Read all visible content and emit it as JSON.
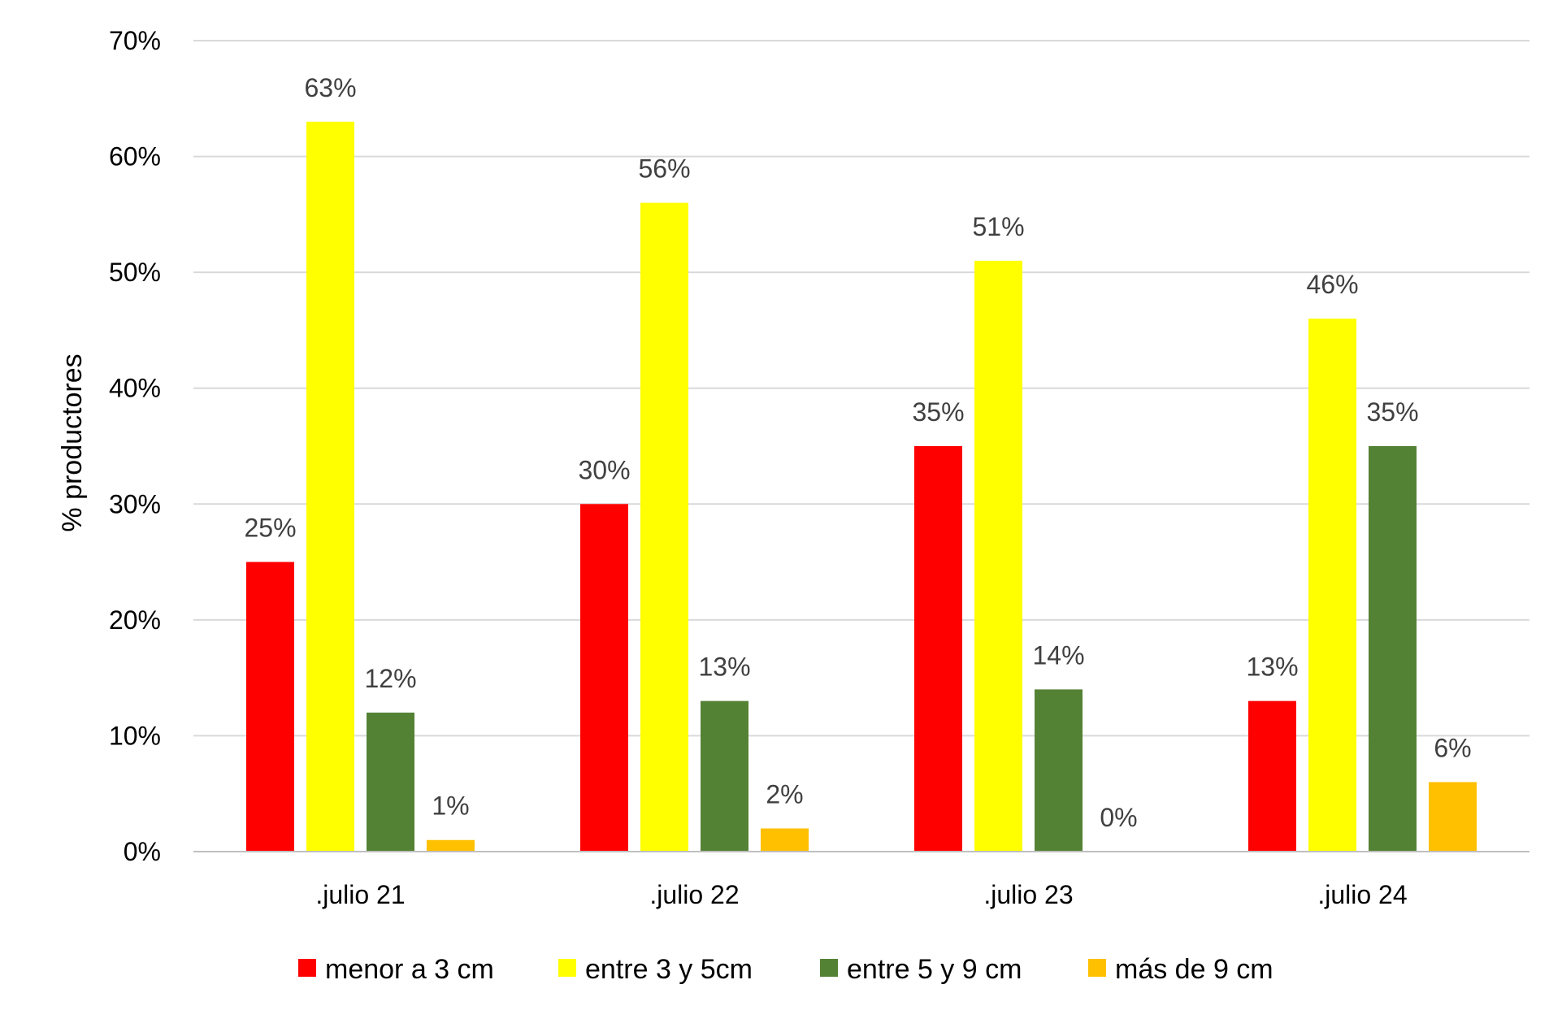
{
  "chart_data": {
    "type": "bar",
    "categories": [
      ".julio 21",
      ".julio 22",
      ".julio 23",
      ".julio 24"
    ],
    "series": [
      {
        "name": "menor a 3 cm",
        "color": "#ff0000",
        "values": [
          25,
          30,
          35,
          13
        ],
        "labels": [
          "25%",
          "30%",
          "35%",
          "13%"
        ]
      },
      {
        "name": "entre 3 y 5cm",
        "color": "#ffff00",
        "values": [
          63,
          56,
          51,
          46
        ],
        "labels": [
          "63%",
          "56%",
          "51%",
          "46%"
        ]
      },
      {
        "name": "entre 5 y 9 cm",
        "color": "#548235",
        "values": [
          12,
          13,
          14,
          35
        ],
        "labels": [
          "12%",
          "13%",
          "14%",
          "35%"
        ]
      },
      {
        "name": "más de 9 cm",
        "color": "#ffc000",
        "values": [
          1,
          2,
          0,
          6
        ],
        "labels": [
          "1%",
          "2%",
          "0%",
          "6%"
        ]
      }
    ],
    "ylabel": "% productores",
    "ylim": [
      0,
      70
    ],
    "yticks": [
      "0%",
      "10%",
      "20%",
      "30%",
      "40%",
      "50%",
      "60%",
      "70%"
    ],
    "grid": true,
    "legend_position": "bottom"
  }
}
